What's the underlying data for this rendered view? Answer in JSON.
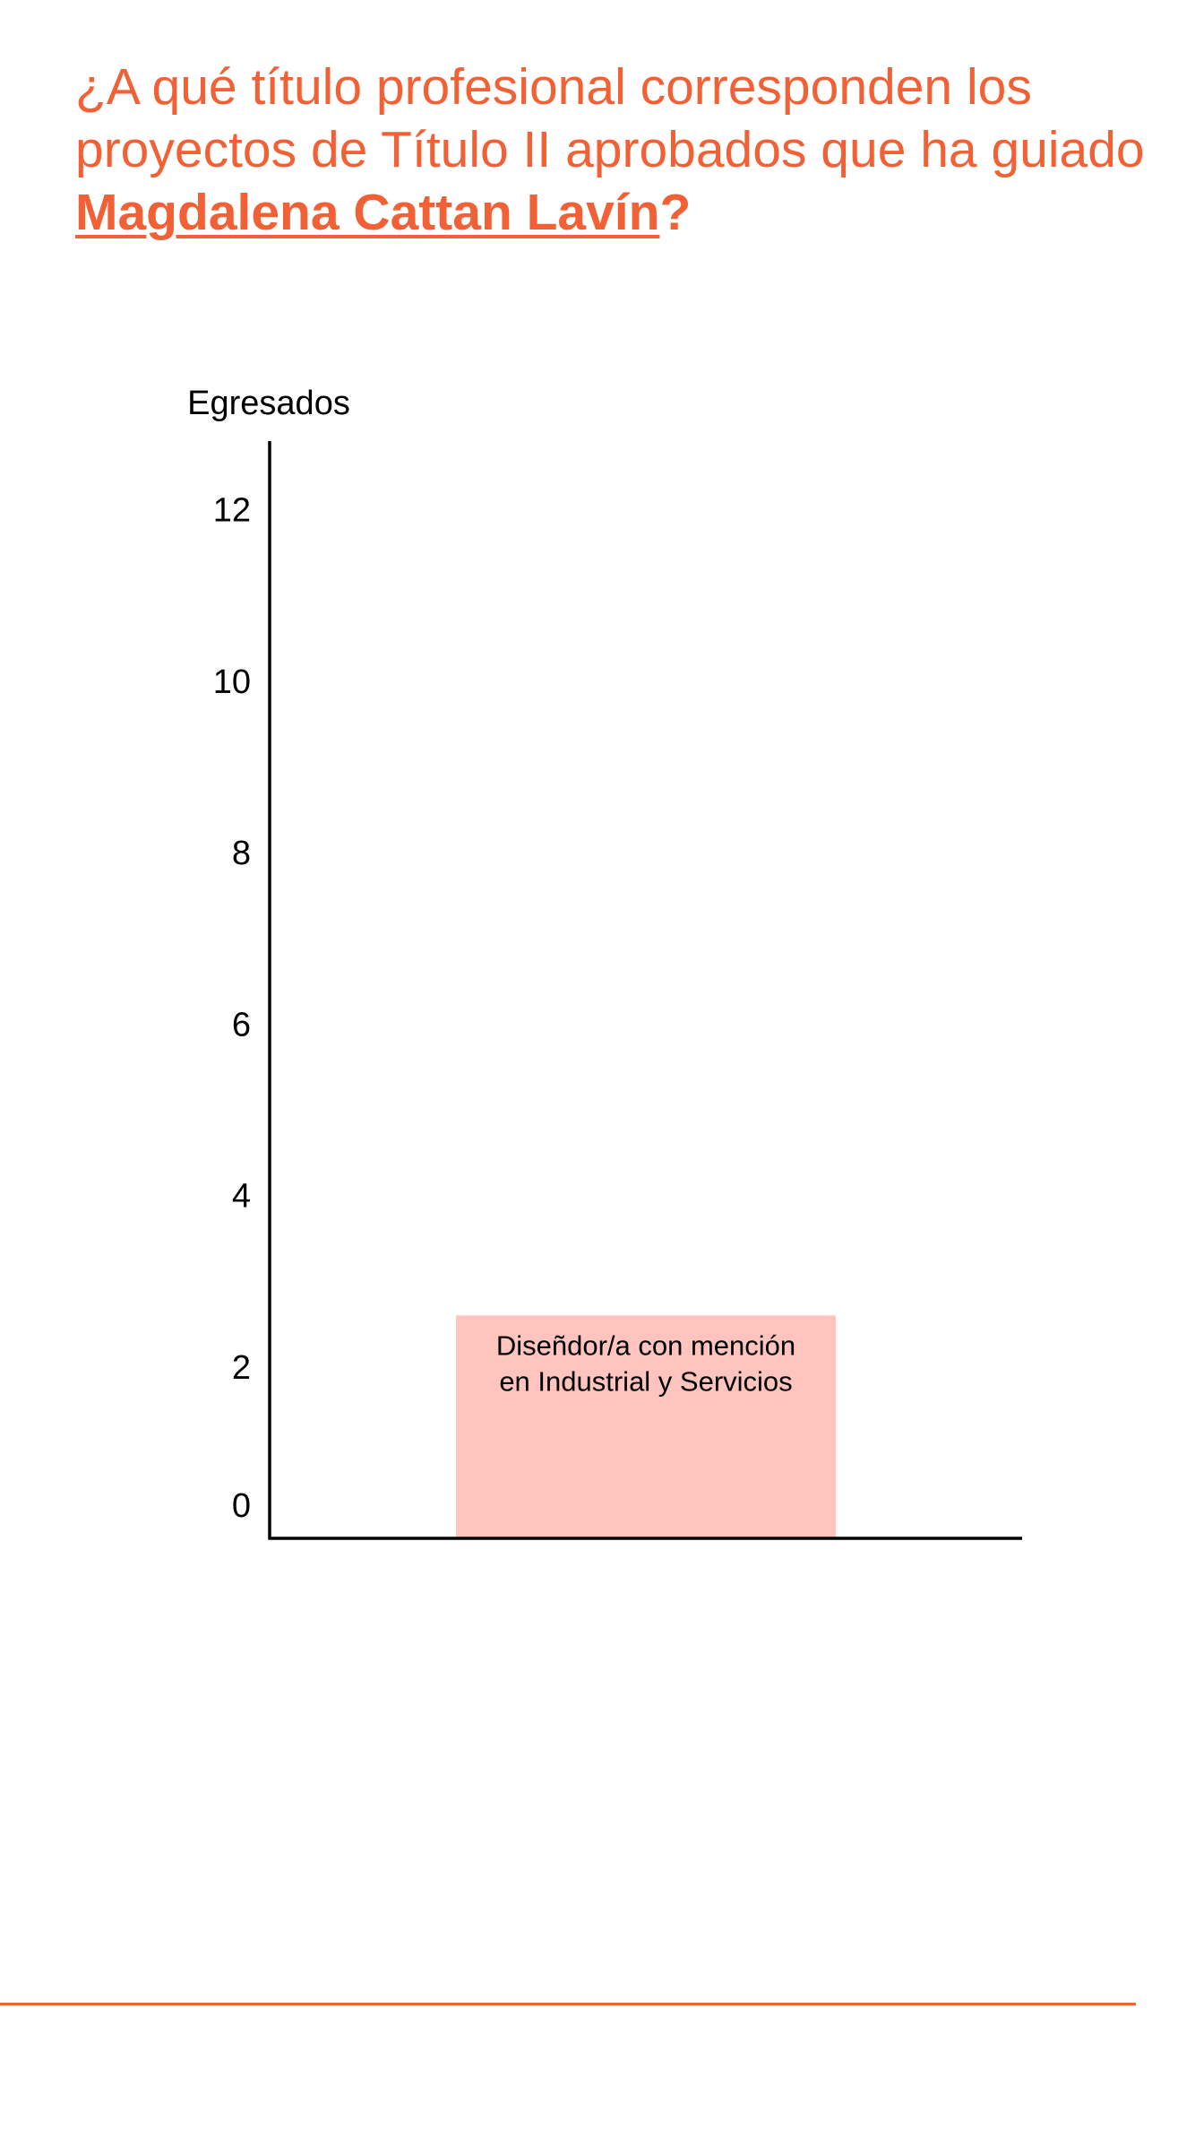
{
  "header": {
    "question_prefix": "¿A qué título profesional corresponden los proyectos de Título II aprobados que ha guiado ",
    "person_name": "Magdalena Cattan Lavín",
    "question_suffix": "?"
  },
  "colors": {
    "accent": "#f26135",
    "bar": "#ffc4bd",
    "axis": "#000000"
  },
  "chart_data": {
    "type": "bar",
    "title": "",
    "ylabel": "Egresados",
    "xlabel": "",
    "ylim": [
      0,
      12.8
    ],
    "yticks": [
      0,
      2,
      4,
      6,
      8,
      10,
      12
    ],
    "categories": [
      "Diseñdor/a con mención en Industrial y Servicios"
    ],
    "category_label_lines": [
      [
        "Diseñdor/a con mención",
        "en Industrial y Servicios"
      ]
    ],
    "values": [
      2.6
    ],
    "grid": false,
    "legend": "none"
  }
}
